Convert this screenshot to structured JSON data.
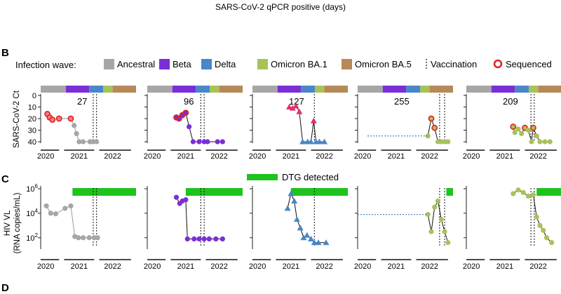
{
  "title": "SARS-CoV-2 qPCR positive (days)",
  "panel_labels": {
    "b": "B",
    "c": "C",
    "d": "D"
  },
  "legend": {
    "title": "Infection wave:",
    "waves": [
      {
        "label": "Ancestral",
        "color": "#a6a6a6"
      },
      {
        "label": "Beta",
        "color": "#7a2fd6"
      },
      {
        "label": "Delta",
        "color": "#4a86c8"
      },
      {
        "label": "Omicron BA.1",
        "color": "#a8c25a"
      },
      {
        "label": "Omicron BA.5",
        "color": "#b58a58"
      }
    ],
    "vaccination": "Vaccination",
    "sequenced": "Sequenced",
    "sequenced_color": "#e02020"
  },
  "dtg": {
    "label": "DTG detected",
    "color": "#1ec31e"
  },
  "axes": {
    "ct_label": "SARS-CoV-2 Ct",
    "vl_label_1": "HIV VL",
    "vl_label_2": "(RNA copies/mL)",
    "ct_ticks": [
      "0",
      "10",
      "20",
      "30",
      "40"
    ],
    "vl_ticks": [
      "10^6",
      "10^4",
      "10^2"
    ],
    "year_labels": [
      "2020",
      "2021",
      "2022"
    ]
  },
  "chart_data": [
    {
      "type": "line",
      "participant": 1,
      "qpcr_positive_days": "27",
      "wave": "Ancestral",
      "ct_ylim": [
        40,
        0
      ],
      "vl_ylim_log10": [
        1.3,
        6
      ],
      "ct_points": [
        {
          "t": 2020.05,
          "ct": 16,
          "seq": true
        },
        {
          "t": 2020.12,
          "ct": 19,
          "seq": true
        },
        {
          "t": 2020.2,
          "ct": 21,
          "seq": true
        },
        {
          "t": 2020.4,
          "ct": 20,
          "seq": true
        },
        {
          "t": 2020.75,
          "ct": 20,
          "seq": true
        },
        {
          "t": 2020.85,
          "ct": 26,
          "seq": false
        },
        {
          "t": 2020.92,
          "ct": 33,
          "seq": false
        },
        {
          "t": 2021.0,
          "ct": 40,
          "seq": false
        },
        {
          "t": 2021.12,
          "ct": 40,
          "seq": false
        },
        {
          "t": 2021.32,
          "ct": 40,
          "seq": false
        },
        {
          "t": 2021.42,
          "ct": 40,
          "seq": false
        },
        {
          "t": 2021.52,
          "ct": 40,
          "seq": false
        }
      ],
      "vl_points": [
        {
          "t": 2020.02,
          "log": 4.6
        },
        {
          "t": 2020.15,
          "log": 4.0
        },
        {
          "t": 2020.3,
          "log": 3.95
        },
        {
          "t": 2020.58,
          "log": 4.4
        },
        {
          "t": 2020.75,
          "log": 4.6
        },
        {
          "t": 2020.87,
          "log": 2.1
        },
        {
          "t": 2020.98,
          "log": 2.0
        },
        {
          "t": 2021.12,
          "log": 2.0
        },
        {
          "t": 2021.3,
          "log": 2.0
        },
        {
          "t": 2021.45,
          "log": 2.0
        },
        {
          "t": 2021.55,
          "log": 2.0
        }
      ],
      "vaccinations": [
        2021.42,
        2021.52
      ],
      "dtg_start": 2020.8
    },
    {
      "type": "line",
      "participant": 2,
      "qpcr_positive_days": "96",
      "wave": "Beta",
      "ct_ylim": [
        40,
        0
      ],
      "vl_ylim_log10": [
        1.3,
        6
      ],
      "ct_points": [
        {
          "t": 2020.72,
          "ct": 19,
          "seq": true
        },
        {
          "t": 2020.8,
          "ct": 20,
          "seq": true
        },
        {
          "t": 2020.9,
          "ct": 17,
          "seq": true
        },
        {
          "t": 2021.0,
          "ct": 15,
          "seq": true
        },
        {
          "t": 2021.1,
          "ct": 27,
          "seq": false
        },
        {
          "t": 2021.22,
          "ct": 40,
          "seq": false
        },
        {
          "t": 2021.4,
          "ct": 40,
          "seq": false
        },
        {
          "t": 2021.55,
          "ct": 40,
          "seq": false
        },
        {
          "t": 2021.65,
          "ct": 40,
          "seq": false
        },
        {
          "t": 2021.95,
          "ct": 40,
          "seq": false
        },
        {
          "t": 2022.1,
          "ct": 40,
          "seq": false
        }
      ],
      "vl_points": [
        {
          "t": 2020.72,
          "log": 5.3
        },
        {
          "t": 2020.82,
          "log": 4.8
        },
        {
          "t": 2020.9,
          "log": 5.0
        },
        {
          "t": 2021.0,
          "log": 5.1
        },
        {
          "t": 2021.05,
          "log": 1.9
        },
        {
          "t": 2021.25,
          "log": 1.9
        },
        {
          "t": 2021.4,
          "log": 1.9
        },
        {
          "t": 2021.55,
          "log": 1.9
        },
        {
          "t": 2021.7,
          "log": 1.9
        },
        {
          "t": 2021.9,
          "log": 1.9
        },
        {
          "t": 2022.1,
          "log": 1.9
        }
      ],
      "vaccinations": [
        2021.45,
        2021.55
      ],
      "dtg_start": 2021.0
    },
    {
      "type": "line",
      "participant": 3,
      "qpcr_positive_days": "127",
      "wave": "Delta",
      "ct_ylim": [
        40,
        0
      ],
      "vl_ylim_log10": [
        1.3,
        6
      ],
      "ct_points": [
        {
          "t": 2020.95,
          "ct": 10,
          "seq": true
        },
        {
          "t": 2021.05,
          "ct": 11,
          "seq": true
        },
        {
          "t": 2021.15,
          "ct": 9,
          "seq": true
        },
        {
          "t": 2021.25,
          "ct": 14,
          "seq": true
        },
        {
          "t": 2021.35,
          "ct": 40,
          "seq": false
        },
        {
          "t": 2021.5,
          "ct": 40,
          "seq": false
        },
        {
          "t": 2021.6,
          "ct": 40,
          "seq": false
        },
        {
          "t": 2021.68,
          "ct": 22,
          "seq": true
        },
        {
          "t": 2021.75,
          "ct": 40,
          "seq": false
        },
        {
          "t": 2021.85,
          "ct": 40,
          "seq": false
        },
        {
          "t": 2022.0,
          "ct": 40,
          "seq": false
        }
      ],
      "vl_points": [
        {
          "t": 2020.9,
          "log": 4.4
        },
        {
          "t": 2021.0,
          "log": 5.6
        },
        {
          "t": 2021.1,
          "log": 5.0
        },
        {
          "t": 2021.18,
          "log": 3.5
        },
        {
          "t": 2021.28,
          "log": 2.8
        },
        {
          "t": 2021.38,
          "log": 2.0
        },
        {
          "t": 2021.48,
          "log": 2.2
        },
        {
          "t": 2021.6,
          "log": 1.9
        },
        {
          "t": 2021.7,
          "log": 1.6
        },
        {
          "t": 2021.82,
          "log": 1.6
        },
        {
          "t": 2022.05,
          "log": 1.6
        }
      ],
      "vaccinations": [
        2021.7
      ],
      "dtg_start": 2021.0
    },
    {
      "type": "line",
      "participant": 4,
      "qpcr_positive_days": "255",
      "wave": "Omicron BA.1",
      "ct_ylim": [
        40,
        0
      ],
      "vl_ylim_log10": [
        1.3,
        6
      ],
      "ct_points": [
        {
          "t": 2021.95,
          "ct": 35,
          "seq": false
        },
        {
          "t": 2022.05,
          "ct": 20,
          "seq": true
        },
        {
          "t": 2022.15,
          "ct": 28,
          "seq": true
        },
        {
          "t": 2022.25,
          "ct": 40,
          "seq": false
        },
        {
          "t": 2022.35,
          "ct": 40,
          "seq": false
        },
        {
          "t": 2022.45,
          "ct": 40,
          "seq": false
        },
        {
          "t": 2022.55,
          "ct": 40,
          "seq": false
        }
      ],
      "vl_points": [
        {
          "t": 2021.95,
          "log": 3.9
        },
        {
          "t": 2022.05,
          "log": 2.5
        },
        {
          "t": 2022.15,
          "log": 4.5
        },
        {
          "t": 2022.25,
          "log": 5.0
        },
        {
          "t": 2022.35,
          "log": 3.5
        },
        {
          "t": 2022.45,
          "log": 2.5
        },
        {
          "t": 2022.55,
          "log": 1.6
        }
      ],
      "vaccinations": [
        2022.3,
        2022.45
      ],
      "dtg_start": 2022.5
    },
    {
      "type": "line",
      "participant": 5,
      "qpcr_positive_days": "209",
      "wave": "Omicron BA.1",
      "ct_ylim": [
        40,
        0
      ],
      "vl_ylim_log10": [
        1.3,
        6
      ],
      "ct_points": [
        {
          "t": 2021.25,
          "ct": 27,
          "seq": true
        },
        {
          "t": 2021.3,
          "ct": 32,
          "seq": false
        },
        {
          "t": 2021.4,
          "ct": 29,
          "seq": false
        },
        {
          "t": 2021.5,
          "ct": 33,
          "seq": false
        },
        {
          "t": 2021.6,
          "ct": 28,
          "seq": true
        },
        {
          "t": 2021.7,
          "ct": 30,
          "seq": false
        },
        {
          "t": 2021.8,
          "ct": 40,
          "seq": false
        },
        {
          "t": 2021.85,
          "ct": 28,
          "seq": true
        },
        {
          "t": 2021.95,
          "ct": 35,
          "seq": false
        },
        {
          "t": 2022.05,
          "ct": 40,
          "seq": false
        },
        {
          "t": 2022.2,
          "ct": 40,
          "seq": false
        },
        {
          "t": 2022.35,
          "ct": 40,
          "seq": false
        }
      ],
      "vl_points": [
        {
          "t": 2021.25,
          "log": 5.6
        },
        {
          "t": 2021.4,
          "log": 5.9
        },
        {
          "t": 2021.55,
          "log": 5.7
        },
        {
          "t": 2021.7,
          "log": 5.4
        },
        {
          "t": 2021.85,
          "log": 5.5
        },
        {
          "t": 2021.95,
          "log": 3.7
        },
        {
          "t": 2022.05,
          "log": 3.0
        },
        {
          "t": 2022.15,
          "log": 2.6
        },
        {
          "t": 2022.25,
          "log": 2.0
        },
        {
          "t": 2022.4,
          "log": 1.6
        }
      ],
      "vaccinations": [
        2021.78,
        2021.88
      ],
      "dtg_start": 2021.95
    }
  ]
}
